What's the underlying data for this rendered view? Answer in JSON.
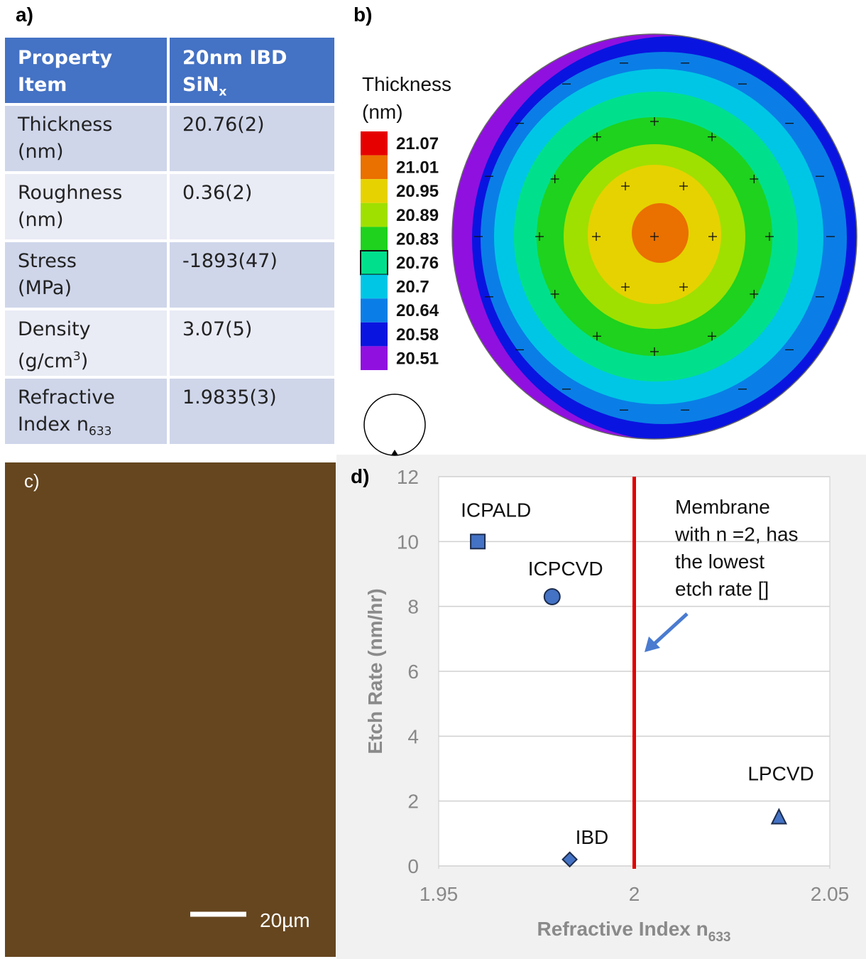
{
  "panel_labels": [
    "a)",
    "b)",
    "c)",
    "d)"
  ],
  "table": {
    "header": [
      [
        "Property",
        "Item"
      ],
      [
        "20nm IBD",
        "SiN",
        "x"
      ]
    ],
    "rows": [
      [
        [
          "Thickness",
          "(nm)"
        ],
        "20.76(2)"
      ],
      [
        [
          "Roughness",
          "(nm)"
        ],
        "0.36(2)"
      ],
      [
        [
          "Stress",
          "(MPa)"
        ],
        "-1893(47)"
      ],
      [
        [
          "Density",
          "(g/cm",
          "3",
          ")"
        ],
        "3.07(5)"
      ],
      [
        [
          "Refractive",
          "Index n",
          "633"
        ],
        "1.9835(3)"
      ]
    ]
  },
  "thickness_map": {
    "title": [
      "Thickness",
      "(nm)"
    ],
    "levels": [
      {
        "value": 21.07,
        "color": "#e60000"
      },
      {
        "value": 21.01,
        "color": "#ea7000"
      },
      {
        "value": 20.95,
        "color": "#e6d200"
      },
      {
        "value": 20.89,
        "color": "#9fe000"
      },
      {
        "value": 20.83,
        "color": "#1ed21e"
      },
      {
        "value": 20.76,
        "color": "#00e08c",
        "selected": true
      },
      {
        "value": 20.7,
        "color": "#00c6e6"
      },
      {
        "value": 20.64,
        "color": "#0a7ee6"
      },
      {
        "value": 20.58,
        "color": "#0a14e0"
      },
      {
        "value": 20.51,
        "color": "#9010e0"
      }
    ]
  },
  "sem_image": {
    "scale_bar": "20µm",
    "color": "#66461f"
  },
  "chart_data": {
    "type": "scatter",
    "x_label": [
      "Refractive Index n",
      "633"
    ],
    "y_label": "Etch Rate (nm/hr)",
    "xlim": [
      1.95,
      2.05
    ],
    "xticks": [
      1.95,
      2,
      2.05
    ],
    "ylim": [
      0,
      12
    ],
    "yticks": [
      0,
      2,
      4,
      6,
      8,
      10,
      12
    ],
    "grid": true,
    "marker_color": "#4472c4",
    "points": [
      {
        "name": "ICPALD",
        "x": 1.96,
        "y": 10,
        "marker": "square"
      },
      {
        "name": "ICPCVD",
        "x": 1.979,
        "y": 8.3,
        "marker": "circle"
      },
      {
        "name": "IBD",
        "x": 1.9835,
        "y": 0.2,
        "marker": "diamond"
      },
      {
        "name": "LPCVD",
        "x": 2.037,
        "y": 1.5,
        "marker": "triangle"
      }
    ],
    "reference_line": {
      "x": 2,
      "color": "#e00000"
    },
    "annotation": [
      "Membrane",
      "with n =2, has",
      "the lowest",
      "etch rate []"
    ]
  }
}
